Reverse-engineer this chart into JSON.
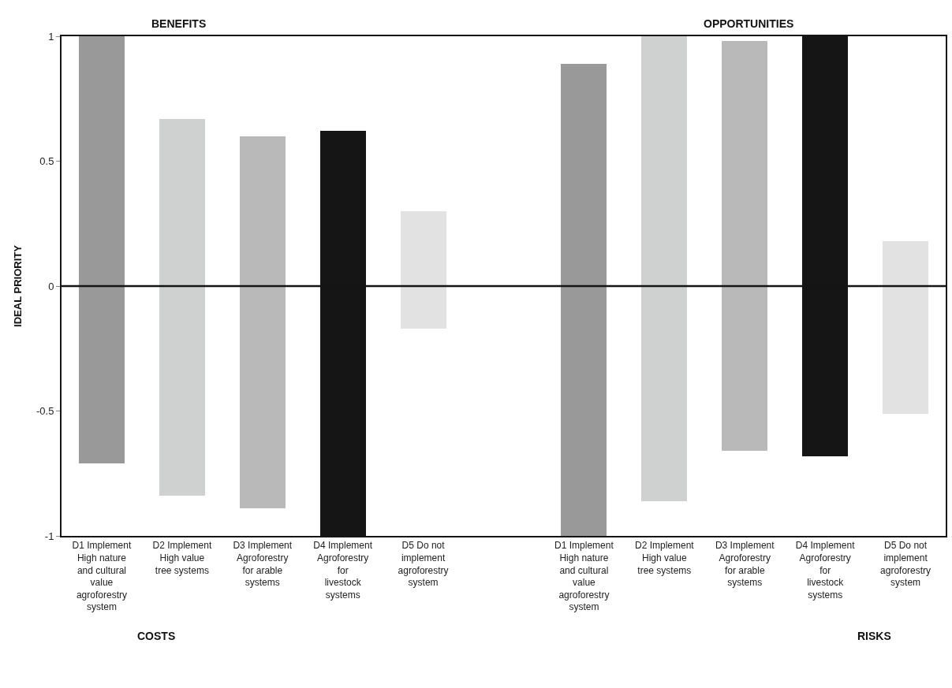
{
  "chart_data": {
    "type": "bar",
    "categories": [
      "D1 Implement High nature and cultural value agroforestry system",
      "D2 Implement High value tree systems",
      "D3 Implement Agroforestry for arable systems",
      "D4 Implement Agroforestry for livestock systems",
      "D5 Do not implement agroforestry system",
      null,
      "D1 Implement High nature and cultural value agroforestry system",
      "D2 Implement High value tree systems",
      "D3 Implement Agroforestry for arable systems",
      "D4 Implement Agroforestry for livestock systems",
      "D5 Do not implement agroforestry system"
    ],
    "base": [
      -0.71,
      -0.84,
      -0.89,
      -1,
      -0.17,
      null,
      -1,
      -0.86,
      -0.66,
      -0.68,
      -0.51
    ],
    "values": [
      1.71,
      1.51,
      1.49,
      1.62,
      0.47,
      null,
      1.89,
      1.86,
      1.64,
      1.68,
      0.69
    ],
    "colors": [
      "#999999",
      "#cfd0d0",
      "#b8b9b8",
      "#151515",
      "#e2e2e2",
      "#ffffff",
      "#999999",
      "#cfd0d0",
      "#b8b9b8",
      "#151515",
      "#e2e2e2"
    ],
    "ylabel": "IDEAL PRIORITY",
    "ylim": [
      -1,
      1
    ],
    "yticks": [
      -1,
      -0.5,
      0,
      0.5,
      1
    ],
    "ref_lines": [
      {
        "axis": "y",
        "value": 0,
        "color": "#151515"
      }
    ],
    "annotations": [
      "BENEFITS",
      "OPPORTUNITIES",
      "COSTS",
      "RISKS"
    ]
  }
}
